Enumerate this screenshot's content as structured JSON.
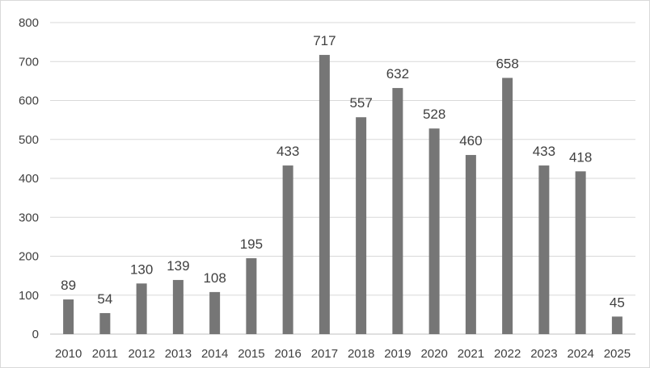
{
  "chart_data": {
    "type": "bar",
    "categories": [
      "2010",
      "2011",
      "2012",
      "2013",
      "2014",
      "2015",
      "2016",
      "2017",
      "2018",
      "2019",
      "2020",
      "2021",
      "2022",
      "2023",
      "2024",
      "2025"
    ],
    "values": [
      89,
      54,
      130,
      139,
      108,
      195,
      433,
      717,
      557,
      632,
      528,
      460,
      658,
      433,
      418,
      45
    ],
    "data_labels": [
      "89",
      "54",
      "130",
      "139",
      "108",
      "195",
      "433",
      "717",
      "557",
      "632",
      "528",
      "460",
      "658",
      "433",
      "418",
      "45"
    ],
    "y_ticks": [
      "0",
      "100",
      "200",
      "300",
      "400",
      "500",
      "600",
      "700",
      "800"
    ],
    "title": "",
    "xlabel": "",
    "ylabel": "",
    "ylim": [
      0,
      800
    ],
    "grid": true,
    "legend": "none",
    "bar_color": "#767676",
    "grid_color": "#d9d9d9"
  }
}
